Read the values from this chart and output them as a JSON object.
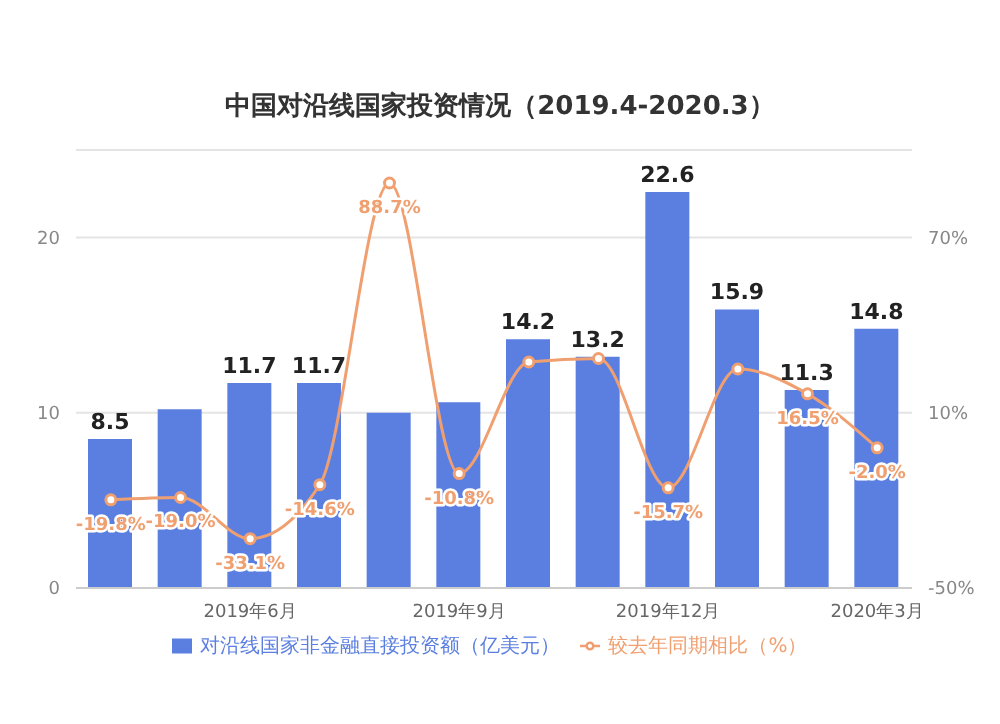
{
  "chart_data": {
    "type": "bar",
    "title": "中国对沿线国家投资情况（2019.4-2020.3）",
    "categories": [
      null,
      null,
      "2019年6月",
      null,
      null,
      "2019年9月",
      null,
      null,
      "2019年12月",
      null,
      null,
      "2020年3月"
    ],
    "series": [
      {
        "name": "对沿线国家非金融直接投资额（亿美元）",
        "color": "#5b7fe0",
        "values": [
          8.5,
          10.2,
          11.7,
          11.7,
          10.0,
          10.6,
          14.2,
          13.2,
          22.6,
          15.9,
          11.3,
          14.8
        ],
        "value_labels": [
          "8.5",
          null,
          "11.7",
          "11.7",
          null,
          null,
          "14.2",
          "13.2",
          "22.6",
          "15.9",
          "11.3",
          "14.8"
        ]
      },
      {
        "name": "较去年同期相比（%）",
        "type": "line",
        "axis": "y2",
        "color": "#f0a070",
        "values": [
          -19.8,
          -19.0,
          -33.1,
          -14.6,
          88.7,
          -10.8,
          27.4,
          28.6,
          -15.7,
          25,
          16.5,
          -2.0
        ],
        "value_labels": [
          "-19.8%",
          "-19.0%",
          "-33.1%",
          "-14.6%",
          "88.7%",
          "-10.8%",
          null,
          null,
          "-15.7%",
          null,
          "16.5%",
          "-2.0%"
        ]
      }
    ],
    "ylim": [
      0,
      25
    ],
    "yticks": [
      0,
      10,
      20
    ],
    "y2lim": [
      -50,
      100
    ],
    "y2ticks": [
      {
        "value": -50,
        "label": "-50%"
      },
      {
        "value": 10,
        "label": "10%"
      },
      {
        "value": 70,
        "label": "70%"
      }
    ],
    "grid": "y",
    "legend": "bottom",
    "marker": "circle"
  }
}
